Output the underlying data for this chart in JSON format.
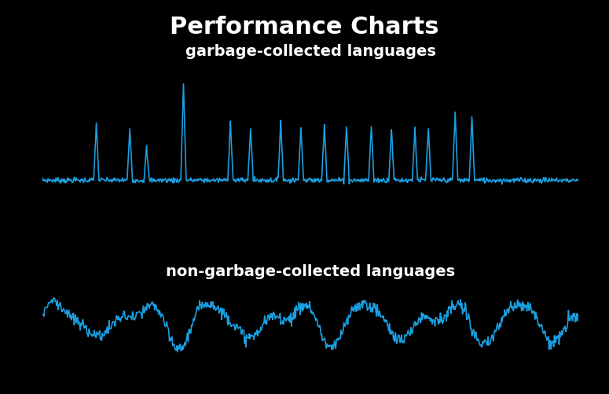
{
  "title": "Performance Charts",
  "title_fontsize": 22,
  "title_fontweight": "bold",
  "title_color": "#ffffff",
  "background_color": "#000000",
  "line_color": "#1a9fe0",
  "label_gc": "garbage-collected languages",
  "label_ngc": "non-garbage-collected languages",
  "label_fontsize": 14,
  "label_color": "#ffffff",
  "line_width": 1.2,
  "fig_width": 7.75,
  "fig_height": 5.01
}
